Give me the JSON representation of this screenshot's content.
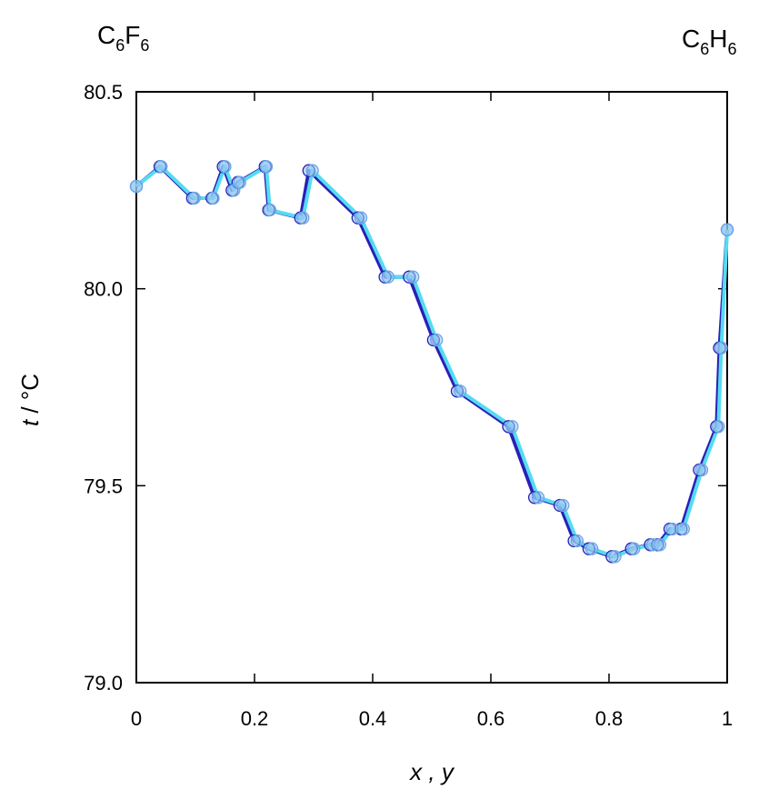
{
  "chart_data": {
    "type": "line",
    "xlabel": "x , y",
    "ylabel_italic": "t",
    "ylabel_rest": " / °C",
    "xlim": [
      0,
      1
    ],
    "ylim": [
      79.0,
      80.5
    ],
    "xticks": [
      "0",
      "0.2",
      "0.4",
      "0.6",
      "0.8",
      "1"
    ],
    "xtick_values": [
      0,
      0.2,
      0.4,
      0.6,
      0.8,
      1.0
    ],
    "yticks": [
      "79.0",
      "79.5",
      "80.0",
      "80.5"
    ],
    "ytick_values": [
      79.0,
      79.5,
      80.0,
      80.5
    ],
    "grid": false,
    "left_component": {
      "base": "C",
      "sub1": "6",
      "mid": "F",
      "sub2": "6"
    },
    "right_component": {
      "base": "C",
      "sub1": "6",
      "mid": "H",
      "sub2": "6"
    },
    "series": [
      {
        "color": "#2a1fb8",
        "x": [
          0.0,
          0.04,
          0.095,
          0.128,
          0.147,
          0.162,
          0.172,
          0.218,
          0.224,
          0.278,
          0.292,
          0.375,
          0.421,
          0.462,
          0.503,
          0.543,
          0.63,
          0.674,
          0.717,
          0.741,
          0.766,
          0.805,
          0.838,
          0.87,
          0.882,
          0.903,
          0.922,
          0.953,
          0.982,
          0.987,
          1.0
        ],
        "y": [
          80.26,
          80.31,
          80.23,
          80.23,
          80.31,
          80.25,
          80.27,
          80.31,
          80.2,
          80.18,
          80.3,
          80.18,
          80.03,
          80.03,
          79.87,
          79.74,
          79.65,
          79.47,
          79.45,
          79.36,
          79.34,
          79.32,
          79.34,
          79.35,
          79.35,
          79.39,
          79.39,
          79.54,
          79.65,
          79.85,
          80.15
        ]
      },
      {
        "color": "#55dcf0",
        "x": [
          0.0,
          0.042,
          0.098,
          0.13,
          0.15,
          0.165,
          0.175,
          0.22,
          0.226,
          0.282,
          0.298,
          0.38,
          0.426,
          0.468,
          0.508,
          0.548,
          0.636,
          0.68,
          0.722,
          0.746,
          0.771,
          0.81,
          0.842,
          0.874,
          0.886,
          0.907,
          0.926,
          0.957,
          0.985,
          0.99,
          1.0
        ],
        "y": [
          80.26,
          80.31,
          80.23,
          80.23,
          80.31,
          80.25,
          80.27,
          80.31,
          80.2,
          80.18,
          80.3,
          80.18,
          80.03,
          80.03,
          79.87,
          79.74,
          79.65,
          79.47,
          79.45,
          79.36,
          79.34,
          79.32,
          79.34,
          79.35,
          79.35,
          79.39,
          79.39,
          79.54,
          79.65,
          79.85,
          80.15
        ]
      }
    ]
  }
}
